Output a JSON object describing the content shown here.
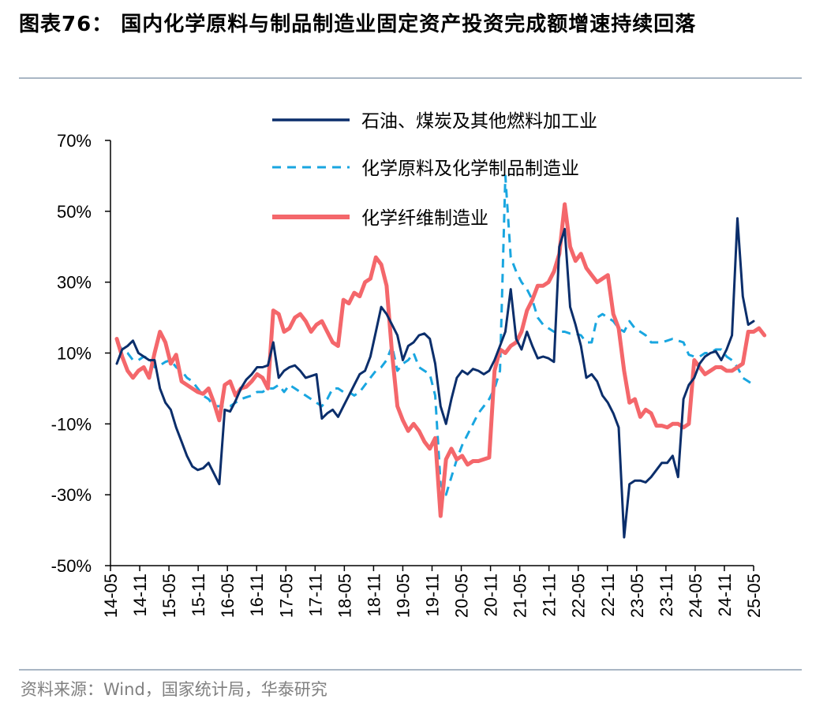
{
  "title": "图表76： 国内化学原料与制品制造业固定资产投资完成额增速持续回落",
  "source": "资料来源：Wind，国家统计局，华泰研究",
  "chart_data": {
    "type": "line",
    "title": "",
    "xlabel": "",
    "ylabel": "",
    "ylim": [
      -50,
      70
    ],
    "yticks": [
      "70%",
      "50%",
      "30%",
      "10%",
      "-10%",
      "-30%",
      "-50%"
    ],
    "ytick_values": [
      70,
      50,
      30,
      10,
      -10,
      -30,
      -50
    ],
    "xticks": [
      "14-05",
      "14-11",
      "15-05",
      "15-11",
      "16-05",
      "16-11",
      "17-05",
      "17-11",
      "18-05",
      "18-11",
      "19-05",
      "19-11",
      "20-05",
      "20-11",
      "21-05",
      "21-11",
      "22-05",
      "22-11",
      "23-05",
      "23-11",
      "24-05",
      "24-11",
      "25-05"
    ],
    "grid": false,
    "legend_position": "top-center",
    "series": [
      {
        "name": "石油、煤炭及其他燃料加工业",
        "color": "#0b2e6b",
        "style": "solid",
        "values": [
          7,
          11,
          12,
          13.5,
          10,
          9,
          8,
          8,
          0,
          -4,
          -6,
          -11,
          -15,
          -19,
          -22,
          -23,
          -22.5,
          -21,
          -24,
          -27,
          -6,
          -6.5,
          -3.5,
          0,
          2.5,
          4,
          6,
          6,
          6.5,
          13,
          3,
          5,
          6,
          6.5,
          5,
          3,
          3.5,
          4,
          -8.5,
          -7,
          -6,
          -8,
          -5,
          -2,
          1,
          4,
          5,
          9,
          16,
          23,
          21,
          18,
          15,
          8,
          12,
          13,
          15,
          15.5,
          14,
          7,
          -5,
          -10,
          -3,
          3,
          5,
          4,
          5.5,
          5,
          4,
          5,
          8,
          12,
          16,
          28,
          14,
          11,
          16,
          12,
          8.5,
          9,
          8.5,
          7.5,
          40,
          45,
          23,
          18,
          12,
          3,
          4,
          2,
          -2,
          -4,
          -7,
          -11,
          -42,
          -27,
          -26,
          -26,
          -26.5,
          -25,
          -23,
          -21,
          -21,
          -19,
          -25,
          -3,
          1,
          3,
          7,
          9,
          10,
          10.5,
          8,
          11,
          15,
          48,
          26,
          18,
          19
        ]
      },
      {
        "name": "化学原料及化学制品制造业",
        "color": "#19a6e0",
        "style": "dashed",
        "values": [
          13,
          11,
          10,
          8,
          8,
          9,
          8.5,
          6,
          6.5,
          7.5,
          8,
          6,
          5,
          3,
          2,
          0,
          -2,
          -3,
          -5,
          -5,
          -5,
          -5,
          -4,
          -3,
          -2.5,
          -2,
          -1,
          -1,
          0,
          0,
          1,
          -1,
          1,
          0,
          -1,
          -2,
          -3,
          -4,
          -5,
          -3,
          0,
          0,
          -1,
          -1,
          -2,
          -1,
          1,
          3,
          5,
          6,
          8,
          12,
          5,
          7,
          8,
          10,
          6,
          5,
          4,
          -2,
          -27,
          -30,
          -25,
          -20,
          -16,
          -13,
          -10,
          -7,
          -5,
          -3,
          0,
          5,
          60,
          37,
          33,
          30,
          28,
          25,
          20,
          18,
          17,
          16,
          16,
          16,
          15.5,
          15.5,
          15,
          13,
          13,
          20,
          21,
          20,
          19,
          17,
          16,
          19,
          17,
          16,
          15,
          13,
          13,
          13,
          13.5,
          14,
          13.5,
          13,
          9.5,
          9,
          9,
          10,
          10,
          11,
          11,
          9,
          8,
          6,
          3,
          2,
          1
        ]
      },
      {
        "name": "化学纤维制造业",
        "color": "#f4676b",
        "style": "solid",
        "values": [
          14,
          9,
          5,
          3,
          5,
          6,
          3,
          10,
          16,
          13,
          7,
          9.5,
          2,
          1,
          0,
          -1,
          -1.5,
          0,
          -4,
          -9,
          1,
          2,
          -2,
          0,
          0.5,
          2,
          4,
          3,
          0,
          22,
          21,
          16,
          17,
          20,
          21,
          19,
          16,
          18,
          19,
          16,
          13,
          12,
          25,
          24,
          27,
          26,
          30,
          31,
          37,
          35,
          29,
          10,
          -5,
          -9,
          -12,
          -10,
          -12,
          -15,
          -17,
          -14,
          -36,
          -20,
          -17,
          -20,
          -19,
          -21.5,
          -20.5,
          -20.5,
          -20,
          -19.5,
          5,
          11,
          10,
          12,
          13,
          16,
          22,
          25,
          29,
          29,
          30,
          33,
          38,
          52,
          40,
          36,
          38,
          34,
          32,
          30,
          31,
          32,
          21,
          17,
          5,
          -4,
          -3,
          -8,
          -6,
          -7,
          -10.5,
          -10.5,
          -11,
          -10,
          -10,
          -11,
          -10,
          8,
          6,
          4,
          5,
          6,
          6,
          5,
          5,
          6,
          7,
          16,
          16,
          17,
          15
        ]
      }
    ]
  }
}
